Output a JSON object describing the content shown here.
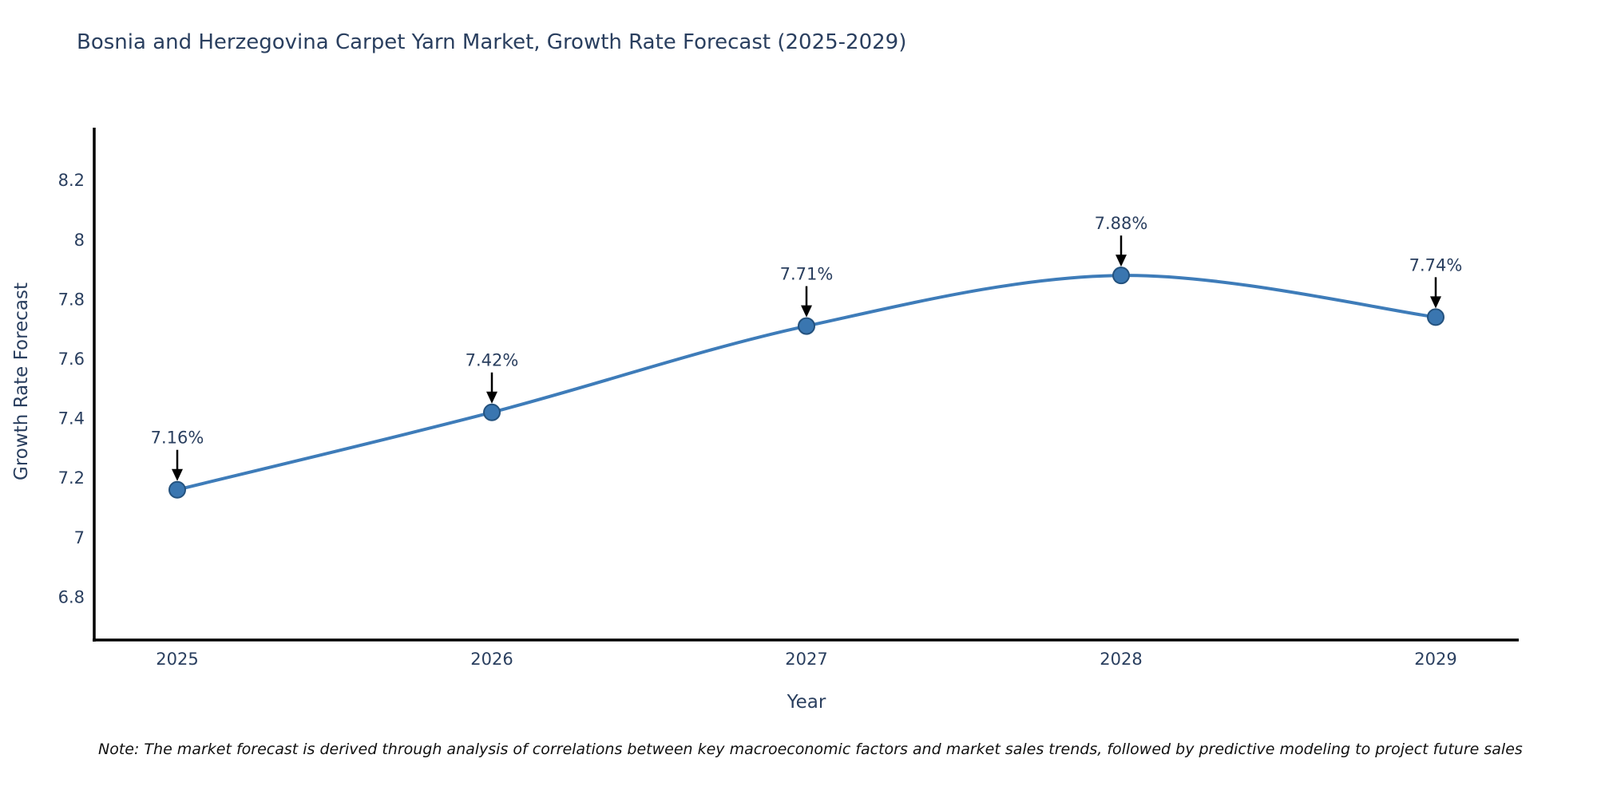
{
  "chart_data": {
    "type": "line",
    "title": "Bosnia and Herzegovina Carpet Yarn Market, Growth Rate Forecast (2025-2029)",
    "xlabel": "Year",
    "ylabel": "Growth Rate Forecast",
    "categories": [
      "2025",
      "2026",
      "2027",
      "2028",
      "2029"
    ],
    "series": [
      {
        "name": "Growth Rate Forecast",
        "values": [
          7.16,
          7.42,
          7.71,
          7.88,
          7.74
        ],
        "point_labels": [
          "7.16%",
          "7.42%",
          "7.71%",
          "7.88%",
          "7.74%"
        ]
      }
    ],
    "yticks": [
      6.8,
      7,
      7.2,
      7.4,
      7.6,
      7.8,
      8,
      8.2
    ],
    "ylim": [
      6.66,
      8.38
    ],
    "grid": false,
    "legend": false,
    "line_shape": "spline",
    "annotation_style": "black-arrow-down",
    "colors": {
      "line": "#3e7cb9",
      "marker_fill": "#3a76b0",
      "marker_edge": "#24527e",
      "arrow": "#000000",
      "point_label_text": "#303030",
      "axis_line": "#000000",
      "tick_text": "#2a3f5f",
      "title_text": "#2a3f5f",
      "background": "#ffffff"
    }
  },
  "note": {
    "text": "Note: The market forecast is derived through analysis of correlations between key macroeconomic factors and market sales trends, followed by predictive modeling to project future sales"
  }
}
